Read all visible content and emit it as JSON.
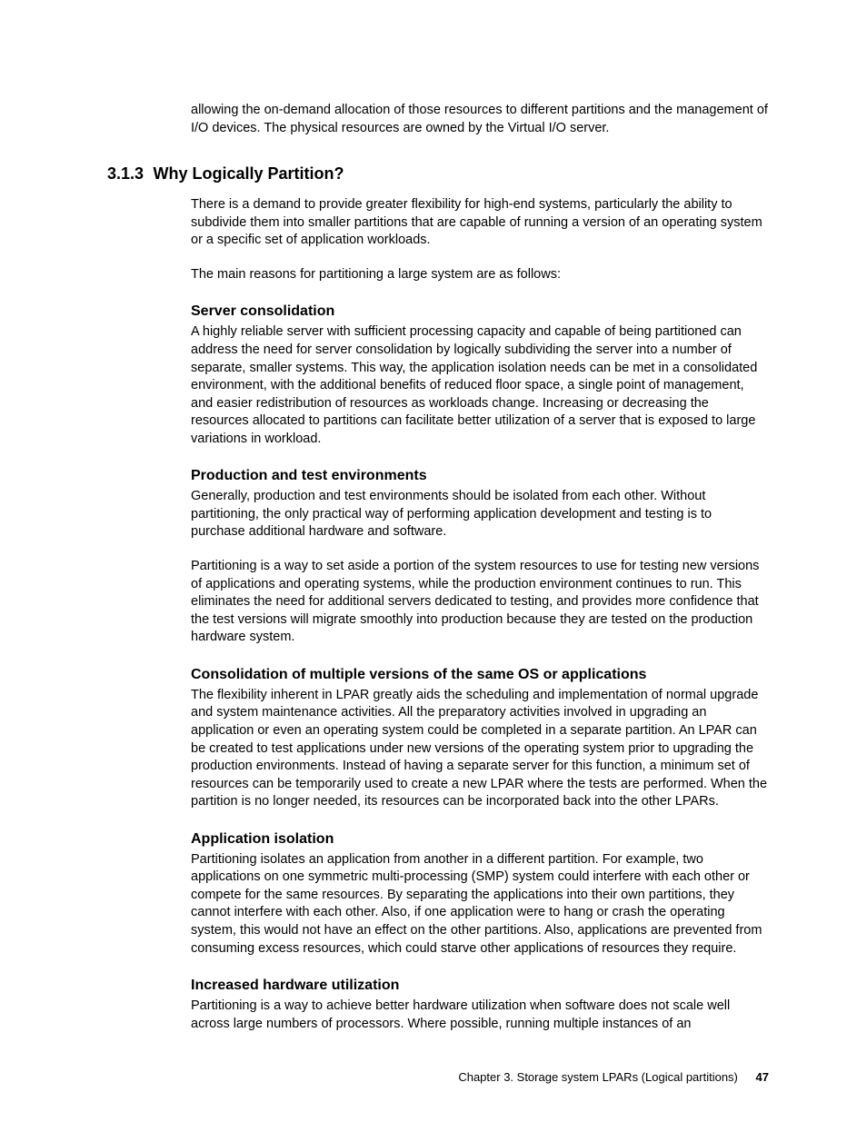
{
  "intro_paragraph": "allowing the on-demand allocation of those resources to different partitions and the management of I/O devices. The physical resources are owned by the Virtual I/O server.",
  "section": {
    "number": "3.1.3",
    "title": "Why Logically Partition?"
  },
  "para_after_heading_1": "There is a demand to provide greater flexibility for high-end systems, particularly the ability to subdivide them into smaller partitions that are capable of running a version of an operating system or a specific set of application workloads.",
  "para_after_heading_2": "The main reasons for partitioning a large system are as follows:",
  "subsections": {
    "server_consolidation": {
      "title": "Server consolidation",
      "text": "A highly reliable server with sufficient processing capacity and capable of being partitioned can address the need for server consolidation by logically subdividing the server into a number of separate, smaller systems. This way, the application isolation needs can be met in a consolidated environment, with the additional benefits of reduced floor space, a single point of management, and easier redistribution of resources as workloads change. Increasing or decreasing the resources allocated to partitions can facilitate better utilization of a server that is exposed to large variations in workload."
    },
    "prod_test": {
      "title": "Production and test environments",
      "text1": "Generally, production and test environments should be isolated from each other. Without partitioning, the only practical way of performing application development and testing is to purchase additional hardware and software.",
      "text2": "Partitioning is a way to set aside a portion of the system resources to use for testing new versions of applications and operating systems, while the production environment continues to run. This eliminates the need for additional servers dedicated to testing, and provides more confidence that the test versions will migrate smoothly into production because they are tested on the production hardware system."
    },
    "consolidation_os": {
      "title": "Consolidation of multiple versions of the same OS or applications",
      "text": "The flexibility inherent in LPAR greatly aids the scheduling and implementation of normal upgrade and system maintenance activities. All the preparatory activities involved in upgrading an application or even an operating system could be completed in a separate partition. An LPAR can be created to test applications under new versions of the operating system prior to upgrading the production environments. Instead of having a separate server for this function, a minimum set of resources can be temporarily used to create a new LPAR where the tests are performed. When the partition is no longer needed, its resources can be incorporated back into the other LPARs."
    },
    "app_isolation": {
      "title": "Application isolation",
      "text": "Partitioning isolates an application from another in a different partition. For example, two applications on one symmetric multi-processing (SMP) system could interfere with each other or compete for the same resources. By separating the applications into their own partitions, they cannot interfere with each other. Also, if one application were to hang or crash the operating system, this would not have an effect on the other partitions. Also, applications are prevented from consuming excess resources, which could starve other applications of resources they require."
    },
    "hw_util": {
      "title": "Increased hardware utilization",
      "text": "Partitioning is a way to achieve better hardware utilization when software does not scale well across large numbers of processors. Where possible, running multiple instances of an"
    }
  },
  "footer": {
    "chapter_text": "Chapter 3. Storage system LPARs (Logical partitions)",
    "page_number": "47"
  }
}
